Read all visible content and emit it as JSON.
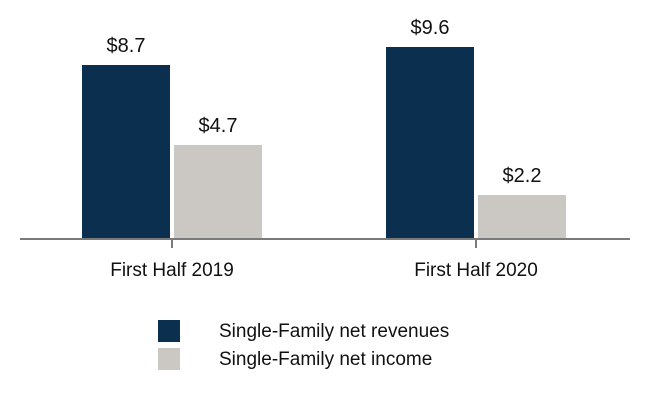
{
  "chart_data": {
    "type": "bar",
    "categories": [
      "First Half 2019",
      "First Half 2020"
    ],
    "series": [
      {
        "name": "Single-Family net revenues",
        "values": [
          8.7,
          9.6
        ],
        "labels": [
          "$8.7",
          "$9.6"
        ],
        "color": "#0b2f4f"
      },
      {
        "name": "Single-Family net income",
        "values": [
          4.7,
          2.2
        ],
        "labels": [
          "$4.7",
          "$2.2"
        ],
        "color": "#cbc8c3"
      }
    ],
    "ylim": [
      0,
      9.6
    ],
    "grid": false,
    "legend_position": "bottom-center",
    "axis_color": "#7a7a7a"
  }
}
